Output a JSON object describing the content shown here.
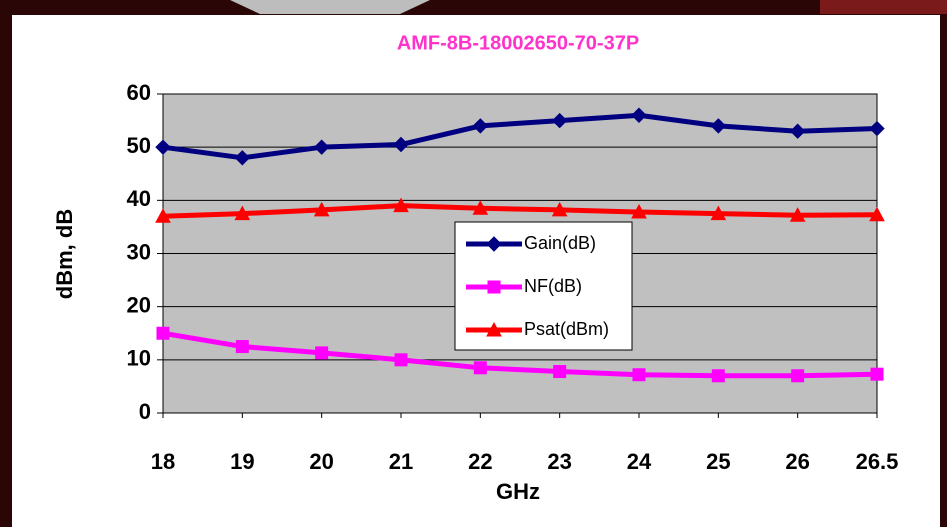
{
  "chart_data": {
    "type": "line",
    "title": "AMF-8B-18002650-70-37P",
    "x_label": "GHz",
    "y_label": "dBm, dB",
    "categories": [
      "18",
      "19",
      "20",
      "21",
      "22",
      "23",
      "24",
      "25",
      "26",
      "26.5"
    ],
    "series": [
      {
        "name": "Gain(dB)",
        "color": "#000080",
        "marker": "diamond",
        "values": [
          50,
          48,
          50,
          50.5,
          54,
          55,
          56,
          54,
          53,
          53.5
        ]
      },
      {
        "name": "NF(dB)",
        "color": "#ff00ff",
        "marker": "square",
        "values": [
          15,
          12.5,
          11.3,
          10,
          8.5,
          7.8,
          7.2,
          7,
          7,
          7.3
        ]
      },
      {
        "name": "Psat(dBm)",
        "color": "#ff0000",
        "marker": "triangle",
        "values": [
          37,
          37.5,
          38.2,
          39,
          38.5,
          38.2,
          37.8,
          37.5,
          37.2,
          37.3
        ]
      }
    ],
    "ylim": [
      0,
      60
    ],
    "yticks": [
      0,
      10,
      20,
      30,
      40,
      50,
      60
    ],
    "grid": true,
    "title_color": "#ff33cc",
    "plot_background": "#c0c0c0"
  }
}
